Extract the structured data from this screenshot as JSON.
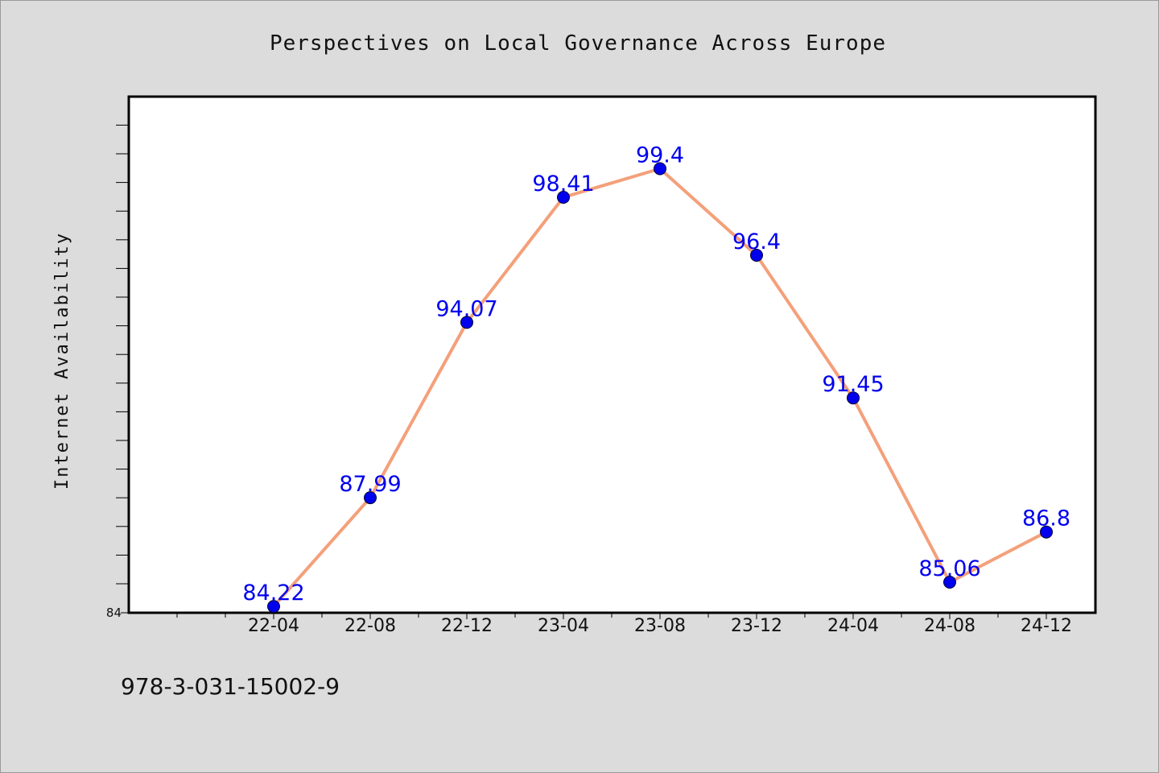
{
  "chart_data": {
    "type": "line",
    "title": "Perspectives on Local Governance Across Europe",
    "xlabel": "",
    "ylabel": "Internet Availability",
    "categories": [
      "22-04",
      "22-08",
      "22-12",
      "23-04",
      "23-08",
      "23-12",
      "24-04",
      "24-08",
      "24-12"
    ],
    "series": [
      {
        "values": [
          84.22,
          87.99,
          94.07,
          98.41,
          99.4,
          96.4,
          91.45,
          85.06,
          86.8
        ],
        "line_color": "#f4a07a",
        "marker_color": "#0000ee"
      }
    ],
    "data_labels": [
      "84.22",
      "87.99",
      "94.07",
      "98.41",
      "99.4",
      "96.4",
      "91.45",
      "85.06",
      "86.8"
    ],
    "ylim": [
      84,
      101.9
    ],
    "y_tick_label": "84",
    "grid": false,
    "legend": "none"
  },
  "footer": {
    "isbn": "978-3-031-15002-9"
  },
  "colors": {
    "background": "#dcdcdc",
    "plot_background": "#ffffff",
    "axis": "#000000"
  }
}
